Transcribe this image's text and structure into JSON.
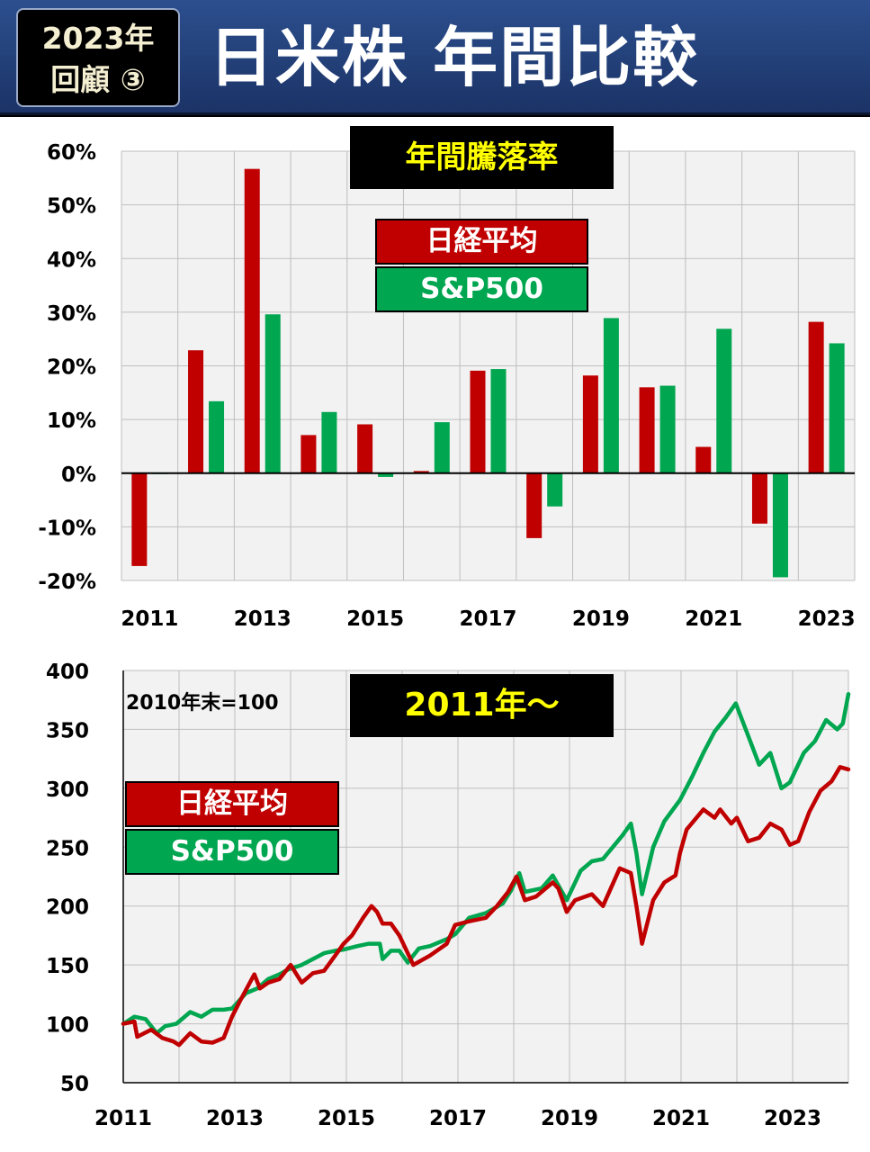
{
  "header": {
    "badge_line1": "2023年",
    "badge_line2": "回顧 ③",
    "title": "日米株  年間比較"
  },
  "colors": {
    "nikkei": "#c00000",
    "sp500": "#00a650",
    "title_text": "#ffff00",
    "header_bg": "#1f3b73"
  },
  "chart_data": [
    {
      "type": "bar",
      "title": "年間騰落率",
      "categories": [
        "2011",
        "2012",
        "2013",
        "2014",
        "2015",
        "2016",
        "2017",
        "2018",
        "2019",
        "2020",
        "2021",
        "2022",
        "2023"
      ],
      "x_tick_labels": [
        "2011",
        "2013",
        "2015",
        "2017",
        "2019",
        "2021",
        "2023"
      ],
      "y_tick_labels": [
        "60%",
        "50%",
        "40%",
        "30%",
        "20%",
        "10%",
        "0%",
        "-10%",
        "-20%"
      ],
      "ylim": [
        -20,
        60
      ],
      "unit": "%",
      "grid": true,
      "legend_position": "top-center",
      "series": [
        {
          "name": "日経平均",
          "color": "#c00000",
          "values": [
            -17.3,
            22.9,
            56.7,
            7.1,
            9.1,
            0.4,
            19.1,
            -12.1,
            18.2,
            16.0,
            4.9,
            -9.4,
            28.2
          ]
        },
        {
          "name": "S&P500",
          "color": "#00a650",
          "values": [
            0.0,
            13.4,
            29.6,
            11.4,
            -0.7,
            9.5,
            19.4,
            -6.2,
            28.9,
            16.3,
            26.9,
            -19.4,
            24.2
          ]
        }
      ]
    },
    {
      "type": "line",
      "title": "2011年～",
      "annotation": "2010年末=100",
      "x_tick_labels": [
        "2011",
        "2013",
        "2015",
        "2017",
        "2019",
        "2021",
        "2023"
      ],
      "y_tick_labels": [
        "400",
        "350",
        "300",
        "250",
        "200",
        "150",
        "100",
        "50"
      ],
      "xlim": [
        2011.0,
        2024.0
      ],
      "ylim": [
        50,
        400
      ],
      "grid": true,
      "legend_position": "middle-left",
      "series": [
        {
          "name": "日経平均",
          "color": "#c00000",
          "x": [
            2011.0,
            2011.2,
            2011.25,
            2011.5,
            2011.7,
            2011.9,
            2012.0,
            2012.2,
            2012.4,
            2012.6,
            2012.8,
            2012.95,
            2013.1,
            2013.35,
            2013.45,
            2013.6,
            2013.8,
            2014.0,
            2014.2,
            2014.4,
            2014.6,
            2014.8,
            2014.95,
            2015.1,
            2015.3,
            2015.45,
            2015.55,
            2015.65,
            2015.8,
            2015.95,
            2016.1,
            2016.2,
            2016.5,
            2016.8,
            2016.95,
            2017.2,
            2017.5,
            2017.7,
            2017.9,
            2018.05,
            2018.2,
            2018.4,
            2018.7,
            2018.8,
            2018.95,
            2019.1,
            2019.4,
            2019.6,
            2019.9,
            2020.1,
            2020.2,
            2020.3,
            2020.5,
            2020.7,
            2020.9,
            2020.98,
            2021.1,
            2021.4,
            2021.6,
            2021.7,
            2021.9,
            2022.0,
            2022.2,
            2022.4,
            2022.6,
            2022.8,
            2022.95,
            2023.1,
            2023.3,
            2023.5,
            2023.7,
            2023.85,
            2024.0
          ],
          "y": [
            100,
            102,
            89,
            95,
            88,
            85,
            82,
            92,
            85,
            84,
            88,
            106,
            120,
            142,
            130,
            135,
            138,
            150,
            135,
            143,
            145,
            158,
            168,
            175,
            190,
            200,
            195,
            185,
            185,
            175,
            160,
            150,
            158,
            168,
            184,
            187,
            190,
            200,
            212,
            225,
            205,
            208,
            220,
            215,
            195,
            205,
            210,
            200,
            232,
            228,
            200,
            168,
            205,
            220,
            226,
            245,
            265,
            282,
            275,
            282,
            270,
            275,
            255,
            258,
            270,
            265,
            252,
            255,
            280,
            298,
            306,
            318,
            316
          ]
        },
        {
          "name": "S&P500",
          "color": "#00a650",
          "x": [
            2011.0,
            2011.2,
            2011.4,
            2011.6,
            2011.75,
            2011.95,
            2012.2,
            2012.4,
            2012.6,
            2012.8,
            2012.95,
            2013.2,
            2013.4,
            2013.6,
            2013.8,
            2013.95,
            2014.2,
            2014.4,
            2014.6,
            2014.8,
            2014.95,
            2015.2,
            2015.4,
            2015.6,
            2015.65,
            2015.8,
            2015.95,
            2016.1,
            2016.3,
            2016.5,
            2016.8,
            2016.95,
            2017.2,
            2017.5,
            2017.8,
            2017.95,
            2018.1,
            2018.2,
            2018.5,
            2018.7,
            2018.95,
            2019.2,
            2019.4,
            2019.6,
            2019.95,
            2020.1,
            2020.2,
            2020.3,
            2020.5,
            2020.7,
            2020.98,
            2021.2,
            2021.4,
            2021.6,
            2021.8,
            2021.98,
            2022.2,
            2022.4,
            2022.6,
            2022.8,
            2022.95,
            2023.2,
            2023.4,
            2023.6,
            2023.8,
            2023.9,
            2024.0
          ],
          "y": [
            100,
            106,
            104,
            92,
            98,
            100,
            110,
            106,
            112,
            112,
            113,
            126,
            130,
            138,
            142,
            146,
            150,
            155,
            160,
            162,
            163,
            166,
            168,
            168,
            155,
            162,
            162,
            152,
            164,
            166,
            172,
            176,
            190,
            194,
            202,
            213,
            228,
            212,
            215,
            226,
            205,
            230,
            238,
            240,
            260,
            270,
            245,
            210,
            250,
            272,
            290,
            310,
            330,
            348,
            360,
            372,
            345,
            320,
            330,
            300,
            305,
            330,
            340,
            358,
            350,
            355,
            380
          ]
        }
      ]
    }
  ],
  "legend_top": {
    "nikkei": "日経平均",
    "sp500": "S&P500"
  },
  "legend_bottom": {
    "nikkei": "日経平均",
    "sp500": "S&P500"
  }
}
